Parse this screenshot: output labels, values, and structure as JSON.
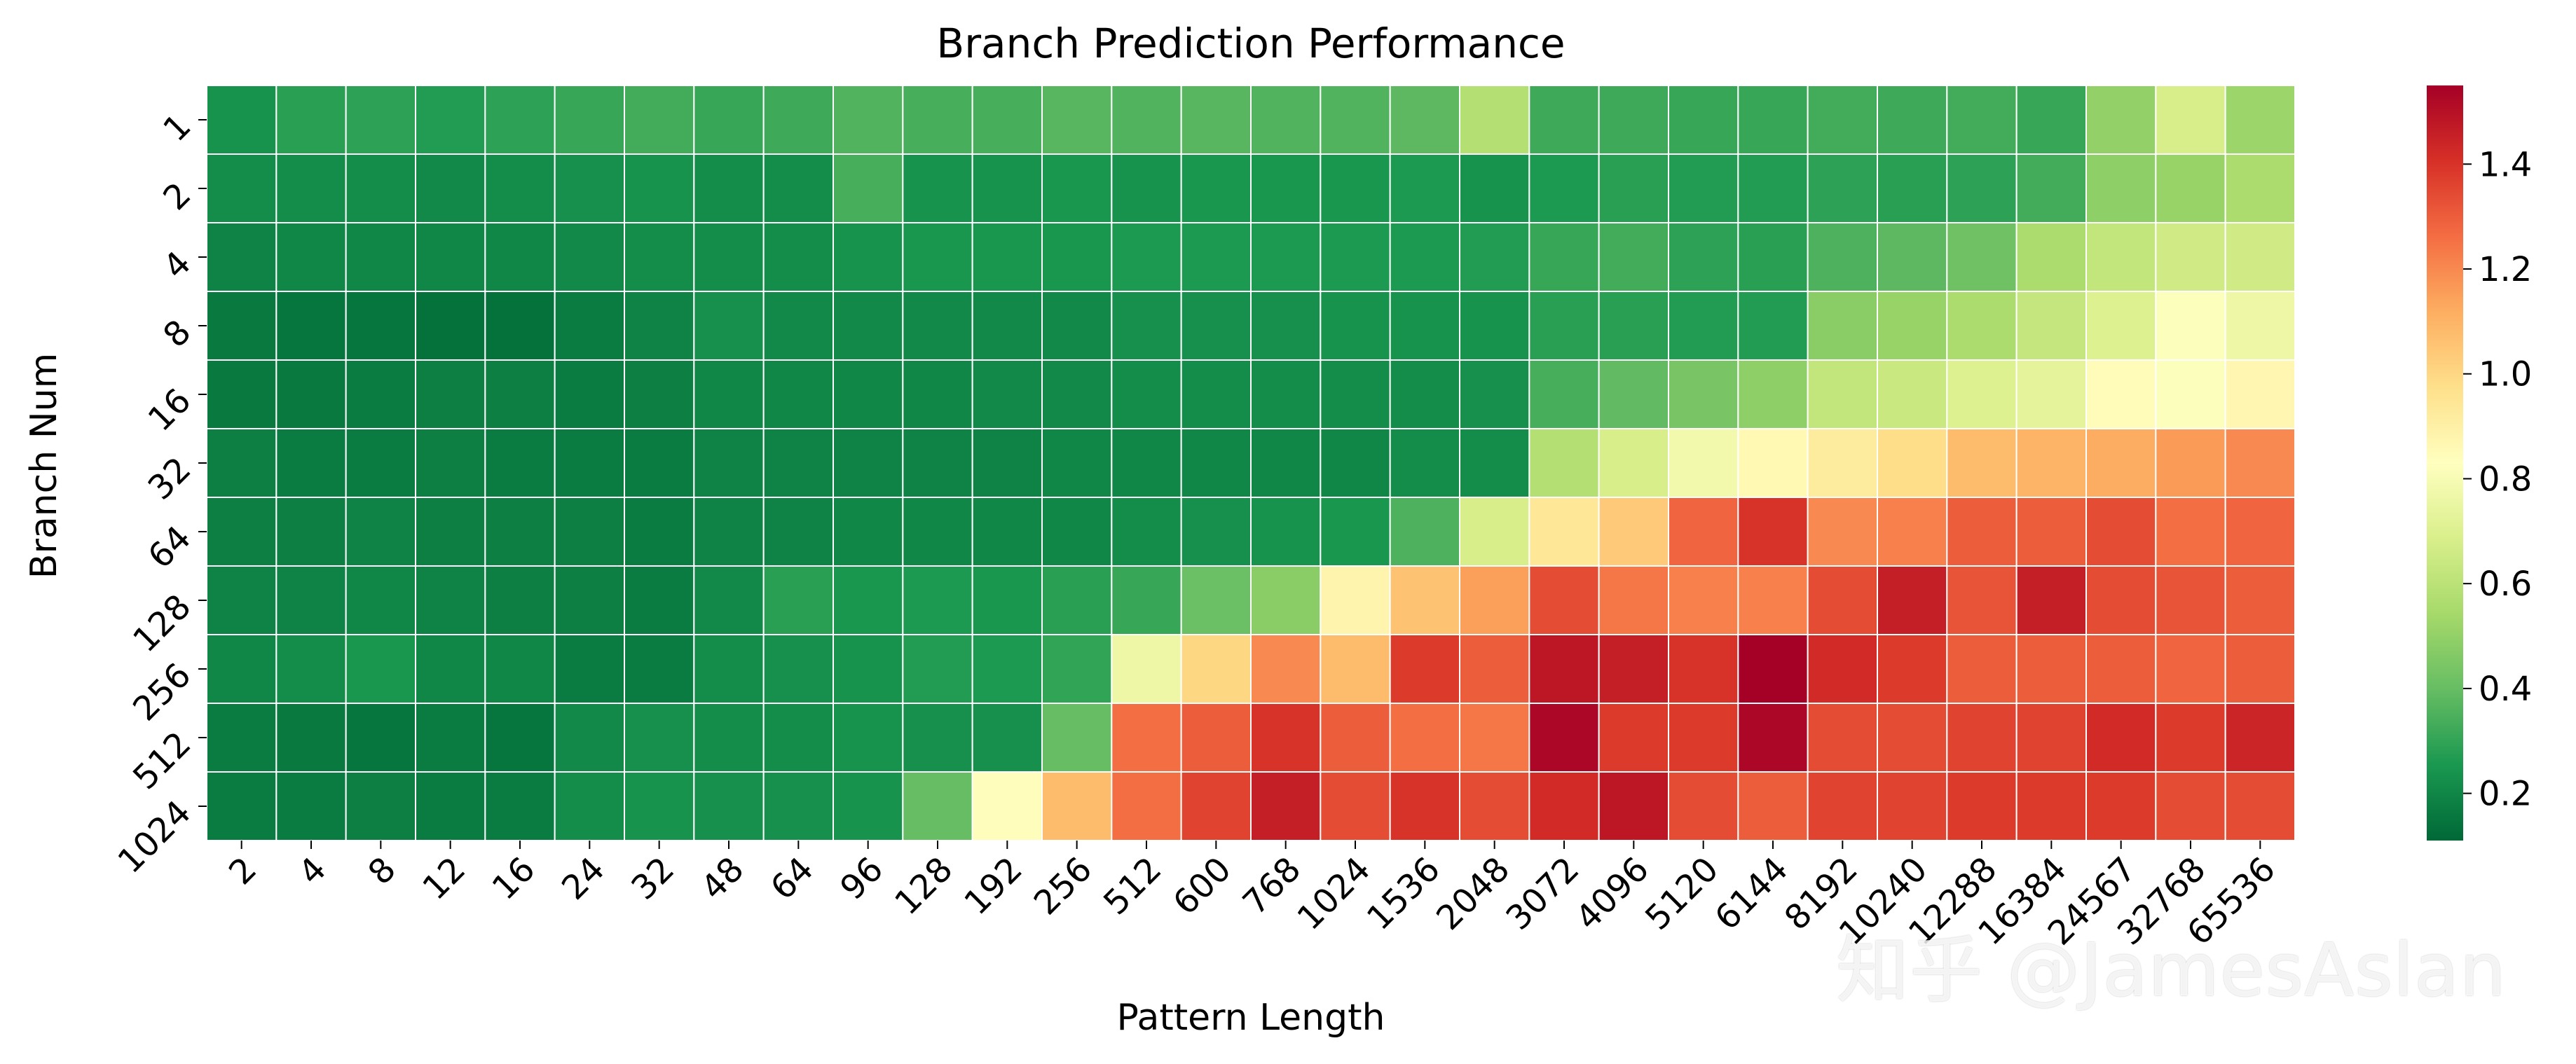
{
  "chart_data": {
    "type": "heatmap",
    "title": "Branch Prediction Performance",
    "xlabel": "Pattern Length",
    "ylabel": "Branch Num",
    "x_categories": [
      "2",
      "4",
      "8",
      "12",
      "16",
      "24",
      "32",
      "48",
      "64",
      "96",
      "128",
      "192",
      "256",
      "512",
      "600",
      "768",
      "1024",
      "1536",
      "2048",
      "3072",
      "4096",
      "5120",
      "6144",
      "8192",
      "10240",
      "12288",
      "16384",
      "24567",
      "32768",
      "65536"
    ],
    "y_categories": [
      "1",
      "2",
      "4",
      "8",
      "16",
      "32",
      "64",
      "128",
      "256",
      "512",
      "1024"
    ],
    "colormap": "RdYlGn_r",
    "vmin": 0.11,
    "vmax": 1.55,
    "colorbar_ticks": [
      0.2,
      0.4,
      0.6,
      0.8,
      1.0,
      1.2,
      1.4
    ],
    "colorbar_tick_labels": [
      "0.2",
      "0.4",
      "0.6",
      "0.8",
      "1.0",
      "1.2",
      "1.4"
    ],
    "values": [
      [
        0.24,
        0.28,
        0.29,
        0.27,
        0.29,
        0.31,
        0.33,
        0.31,
        0.32,
        0.36,
        0.34,
        0.34,
        0.37,
        0.36,
        0.37,
        0.36,
        0.36,
        0.38,
        0.58,
        0.32,
        0.32,
        0.31,
        0.31,
        0.33,
        0.32,
        0.33,
        0.31,
        0.5,
        0.68,
        0.52
      ],
      [
        0.22,
        0.22,
        0.22,
        0.21,
        0.22,
        0.23,
        0.24,
        0.22,
        0.22,
        0.34,
        0.24,
        0.24,
        0.25,
        0.24,
        0.25,
        0.25,
        0.25,
        0.26,
        0.24,
        0.26,
        0.28,
        0.27,
        0.27,
        0.29,
        0.28,
        0.29,
        0.33,
        0.49,
        0.51,
        0.56
      ],
      [
        0.19,
        0.2,
        0.2,
        0.2,
        0.2,
        0.21,
        0.22,
        0.22,
        0.22,
        0.24,
        0.25,
        0.25,
        0.25,
        0.26,
        0.26,
        0.26,
        0.26,
        0.26,
        0.27,
        0.31,
        0.33,
        0.29,
        0.28,
        0.35,
        0.38,
        0.42,
        0.56,
        0.62,
        0.66,
        0.66
      ],
      [
        0.16,
        0.15,
        0.15,
        0.14,
        0.14,
        0.17,
        0.19,
        0.23,
        0.21,
        0.21,
        0.21,
        0.21,
        0.21,
        0.23,
        0.23,
        0.23,
        0.24,
        0.24,
        0.24,
        0.28,
        0.28,
        0.27,
        0.27,
        0.48,
        0.51,
        0.56,
        0.63,
        0.7,
        0.82,
        0.76
      ],
      [
        0.16,
        0.16,
        0.17,
        0.18,
        0.18,
        0.17,
        0.18,
        0.2,
        0.2,
        0.2,
        0.2,
        0.21,
        0.21,
        0.22,
        0.22,
        0.22,
        0.22,
        0.22,
        0.23,
        0.34,
        0.39,
        0.44,
        0.49,
        0.62,
        0.64,
        0.7,
        0.73,
        0.85,
        0.82,
        0.87
      ],
      [
        0.18,
        0.17,
        0.17,
        0.18,
        0.17,
        0.17,
        0.17,
        0.19,
        0.19,
        0.19,
        0.19,
        0.19,
        0.2,
        0.2,
        0.2,
        0.2,
        0.2,
        0.22,
        0.22,
        0.58,
        0.68,
        0.78,
        0.86,
        0.92,
        0.98,
        1.08,
        1.1,
        1.12,
        1.16,
        1.2
      ],
      [
        0.18,
        0.18,
        0.19,
        0.18,
        0.18,
        0.18,
        0.17,
        0.19,
        0.19,
        0.2,
        0.2,
        0.2,
        0.2,
        0.22,
        0.23,
        0.24,
        0.25,
        0.35,
        0.68,
        0.94,
        1.04,
        1.28,
        1.4,
        1.2,
        1.22,
        1.3,
        1.3,
        1.34,
        1.26,
        1.28
      ],
      [
        0.19,
        0.19,
        0.2,
        0.19,
        0.18,
        0.18,
        0.17,
        0.21,
        0.28,
        0.25,
        0.26,
        0.25,
        0.28,
        0.31,
        0.41,
        0.48,
        0.88,
        1.06,
        1.15,
        1.34,
        1.24,
        1.22,
        1.22,
        1.34,
        1.46,
        1.32,
        1.46,
        1.34,
        1.32,
        1.3
      ],
      [
        0.2,
        0.22,
        0.25,
        0.2,
        0.2,
        0.17,
        0.17,
        0.22,
        0.23,
        0.24,
        0.27,
        0.26,
        0.3,
        0.76,
        1.0,
        1.2,
        1.08,
        1.38,
        1.3,
        1.48,
        1.46,
        1.4,
        1.55,
        1.42,
        1.38,
        1.3,
        1.3,
        1.3,
        1.28,
        1.3
      ],
      [
        0.17,
        0.16,
        0.15,
        0.17,
        0.15,
        0.21,
        0.23,
        0.22,
        0.22,
        0.24,
        0.23,
        0.23,
        0.4,
        1.26,
        1.3,
        1.4,
        1.3,
        1.26,
        1.24,
        1.53,
        1.38,
        1.38,
        1.53,
        1.34,
        1.34,
        1.36,
        1.36,
        1.42,
        1.38,
        1.44
      ],
      [
        0.17,
        0.17,
        0.18,
        0.17,
        0.17,
        0.22,
        0.24,
        0.23,
        0.23,
        0.24,
        0.4,
        0.84,
        1.08,
        1.26,
        1.36,
        1.46,
        1.34,
        1.4,
        1.34,
        1.42,
        1.48,
        1.34,
        1.3,
        1.36,
        1.36,
        1.38,
        1.38,
        1.38,
        1.34,
        1.34
      ]
    ]
  },
  "watermark": "知乎 @JamesAslan"
}
